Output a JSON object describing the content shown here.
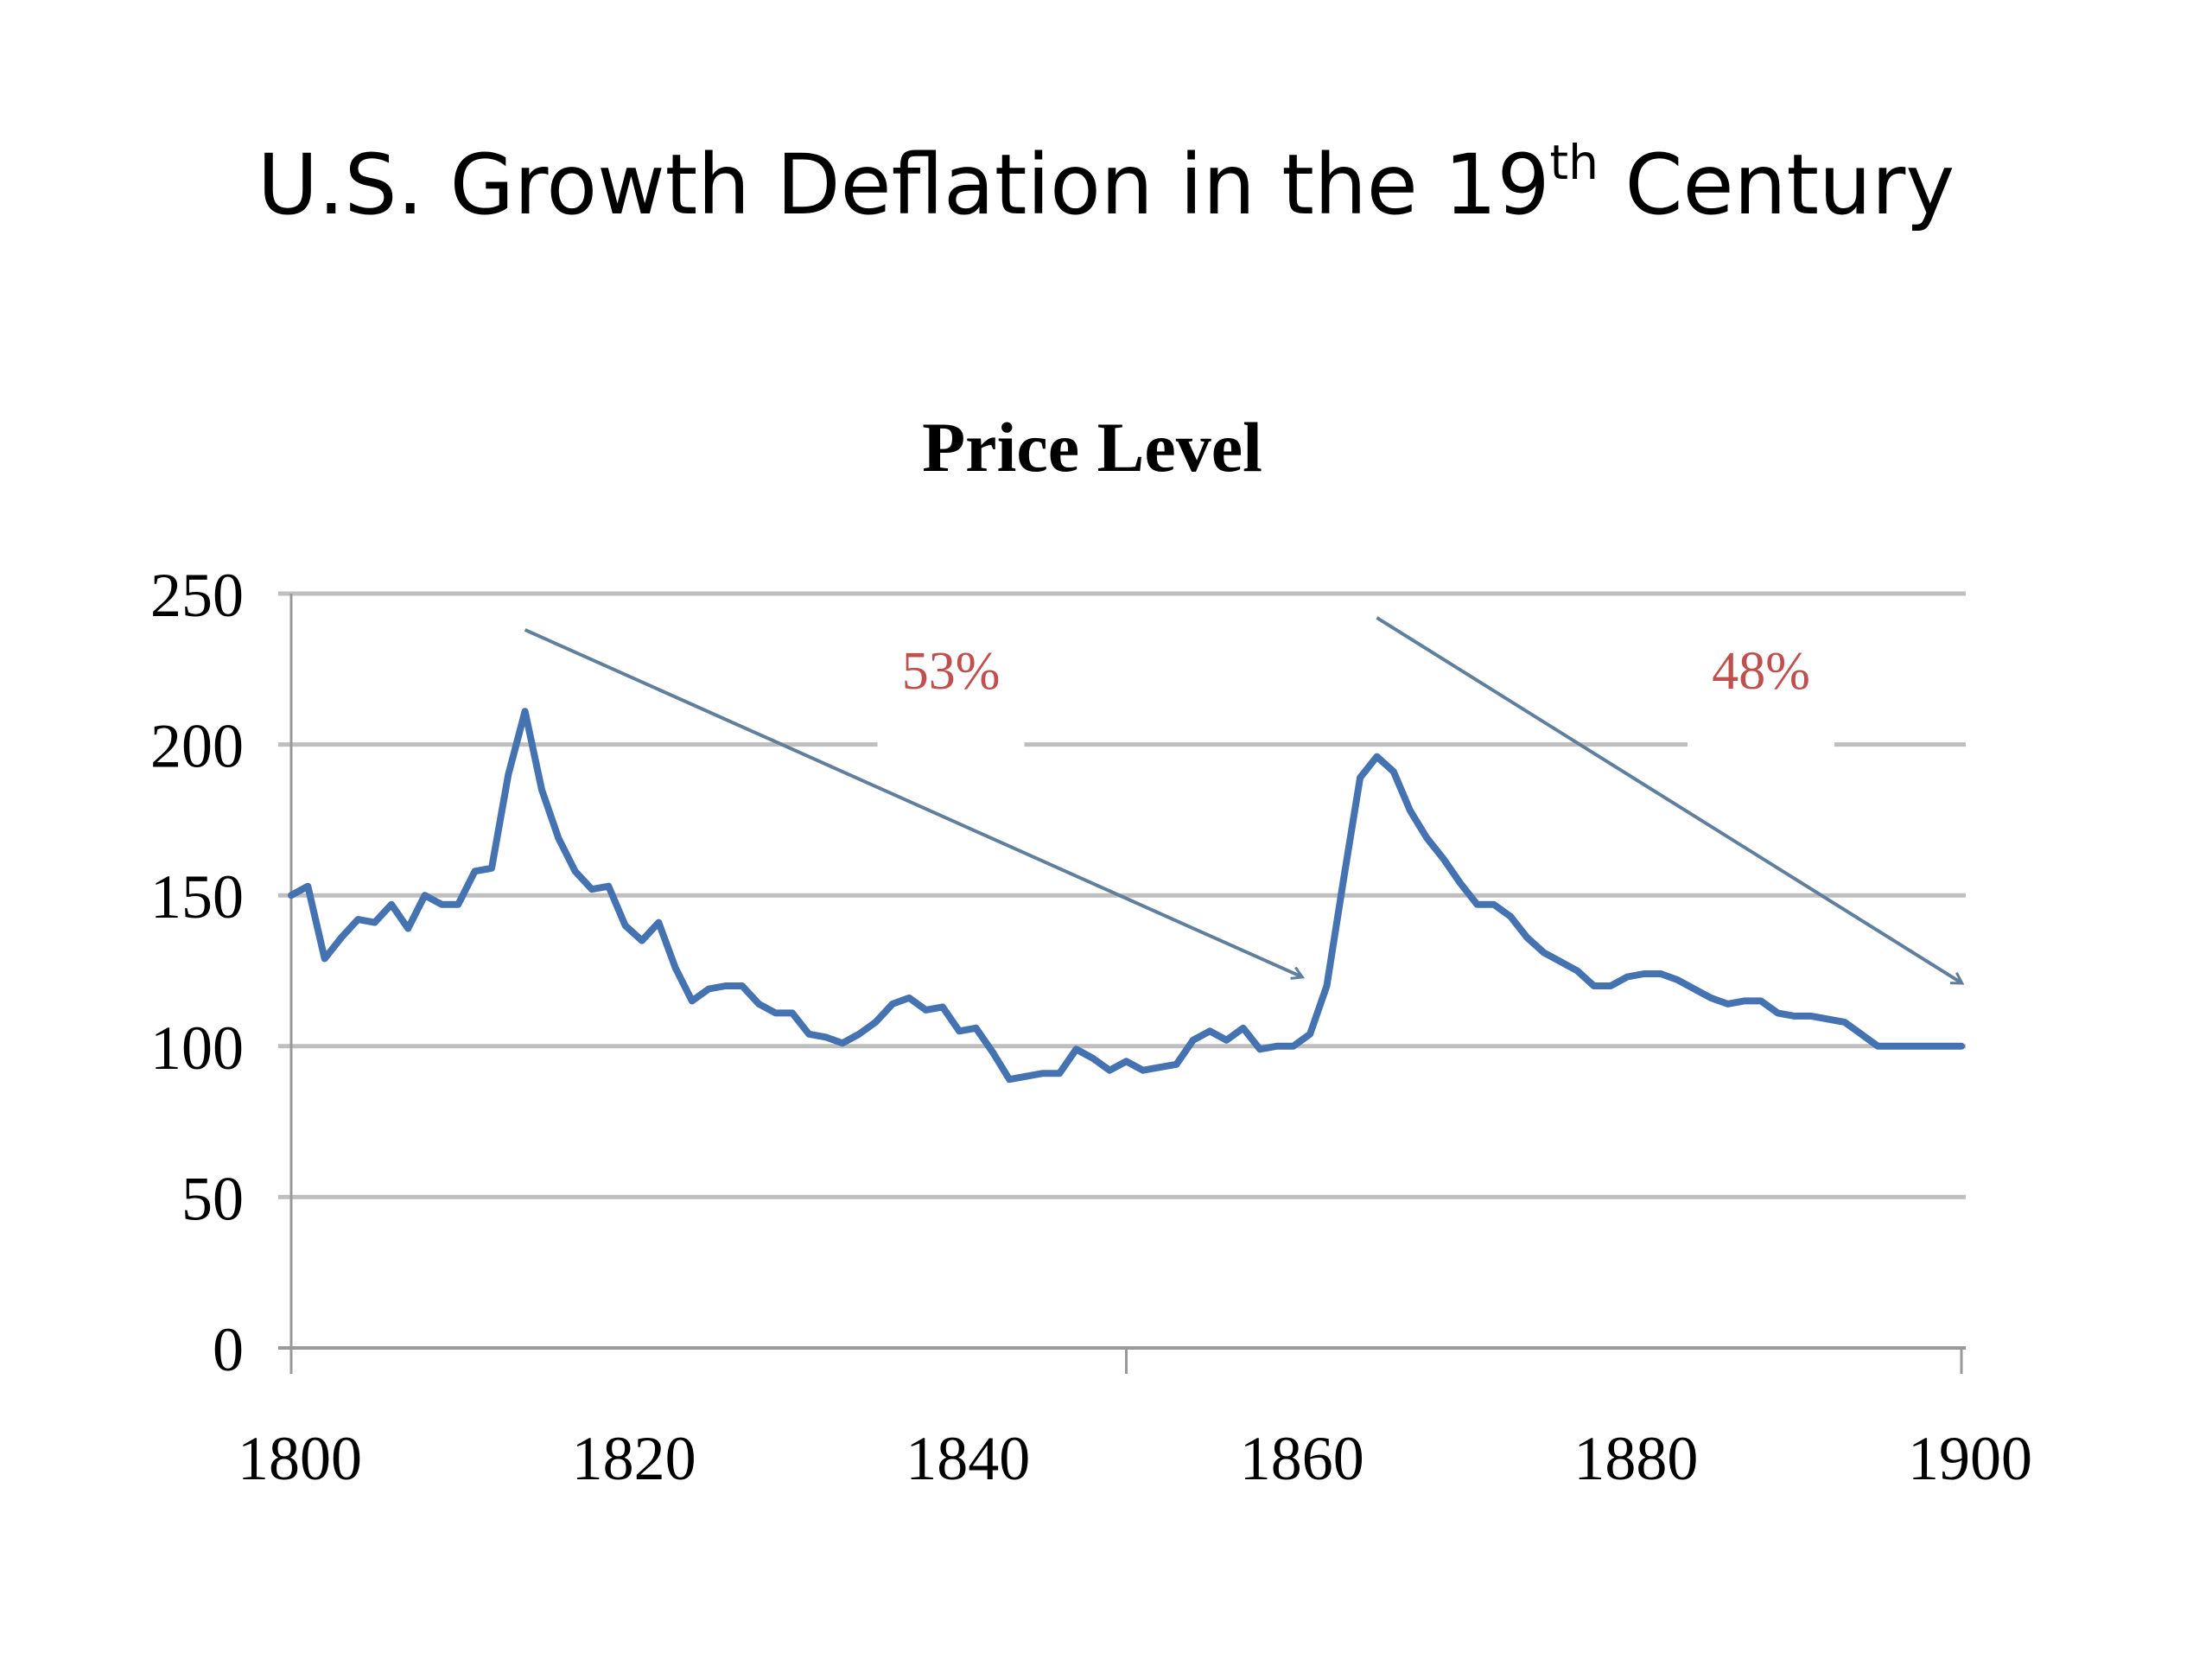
{
  "slide": {
    "title_main": "U.S. Growth Deflation in the 19",
    "title_sup": "th",
    "title_end": " Century"
  },
  "colors": {
    "line": "#4573b1",
    "arrow": "#5f7f9c",
    "annotation": "#c0504d",
    "grid": "#bfbfbf",
    "axis": "#999999",
    "text": "#000000"
  },
  "chart_data": {
    "type": "line",
    "title": "Price Level",
    "xlabel": "",
    "ylabel": "",
    "xlim": [
      1800,
      1900
    ],
    "ylim": [
      0,
      250
    ],
    "x_ticks": [
      1800,
      1820,
      1840,
      1860,
      1880,
      1900
    ],
    "y_ticks": [
      0,
      50,
      100,
      150,
      200,
      250
    ],
    "grid": true,
    "series": [
      {
        "values": [
          [
            1800,
            150
          ],
          [
            1801,
            153
          ],
          [
            1802,
            129
          ],
          [
            1803,
            136
          ],
          [
            1804,
            142
          ],
          [
            1805,
            141
          ],
          [
            1806,
            147
          ],
          [
            1807,
            139
          ],
          [
            1808,
            150
          ],
          [
            1809,
            147
          ],
          [
            1810,
            147
          ],
          [
            1811,
            158
          ],
          [
            1812,
            159
          ],
          [
            1813,
            190
          ],
          [
            1814,
            211
          ],
          [
            1815,
            185
          ],
          [
            1816,
            169
          ],
          [
            1817,
            158
          ],
          [
            1818,
            152
          ],
          [
            1819,
            153
          ],
          [
            1820,
            140
          ],
          [
            1821,
            135
          ],
          [
            1822,
            141
          ],
          [
            1823,
            126
          ],
          [
            1824,
            115
          ],
          [
            1825,
            119
          ],
          [
            1826,
            120
          ],
          [
            1827,
            120
          ],
          [
            1828,
            114
          ],
          [
            1829,
            111
          ],
          [
            1830,
            111
          ],
          [
            1831,
            104
          ],
          [
            1832,
            103
          ],
          [
            1833,
            101
          ],
          [
            1834,
            104
          ],
          [
            1835,
            108
          ],
          [
            1836,
            114
          ],
          [
            1837,
            116
          ],
          [
            1838,
            112
          ],
          [
            1839,
            113
          ],
          [
            1840,
            105
          ],
          [
            1841,
            106
          ],
          [
            1842,
            98
          ],
          [
            1843,
            89
          ],
          [
            1844,
            90
          ],
          [
            1845,
            91
          ],
          [
            1846,
            91
          ],
          [
            1847,
            99
          ],
          [
            1848,
            96
          ],
          [
            1849,
            92
          ],
          [
            1850,
            95
          ],
          [
            1851,
            92
          ],
          [
            1852,
            93
          ],
          [
            1853,
            94
          ],
          [
            1854,
            102
          ],
          [
            1855,
            105
          ],
          [
            1856,
            102
          ],
          [
            1857,
            106
          ],
          [
            1858,
            99
          ],
          [
            1859,
            100
          ],
          [
            1860,
            100
          ],
          [
            1861,
            104
          ],
          [
            1862,
            120
          ],
          [
            1863,
            155
          ],
          [
            1864,
            189
          ],
          [
            1865,
            196
          ],
          [
            1866,
            191
          ],
          [
            1867,
            178
          ],
          [
            1868,
            169
          ],
          [
            1869,
            162
          ],
          [
            1870,
            154
          ],
          [
            1871,
            147
          ],
          [
            1872,
            147
          ],
          [
            1873,
            143
          ],
          [
            1874,
            136
          ],
          [
            1875,
            131
          ],
          [
            1876,
            128
          ],
          [
            1877,
            125
          ],
          [
            1878,
            120
          ],
          [
            1879,
            120
          ],
          [
            1880,
            123
          ],
          [
            1881,
            124
          ],
          [
            1882,
            124
          ],
          [
            1883,
            122
          ],
          [
            1884,
            119
          ],
          [
            1885,
            116
          ],
          [
            1886,
            114
          ],
          [
            1887,
            115
          ],
          [
            1888,
            115
          ],
          [
            1889,
            111
          ],
          [
            1890,
            110
          ],
          [
            1891,
            110
          ],
          [
            1892,
            109
          ],
          [
            1893,
            108
          ],
          [
            1894,
            104
          ],
          [
            1895,
            100
          ],
          [
            1896,
            100
          ],
          [
            1897,
            100
          ],
          [
            1898,
            100
          ],
          [
            1899,
            100
          ],
          [
            1900,
            100
          ]
        ]
      }
    ],
    "annotations": [
      {
        "text": "53%",
        "x": 1839.5,
        "y": 220,
        "arrow_from": [
          1814,
          238
        ],
        "arrow_to": [
          1860.5,
          123
        ]
      },
      {
        "text": "48%",
        "x": 1888,
        "y": 220,
        "arrow_from": [
          1865,
          242
        ],
        "arrow_to": [
          1900,
          121
        ]
      }
    ]
  }
}
